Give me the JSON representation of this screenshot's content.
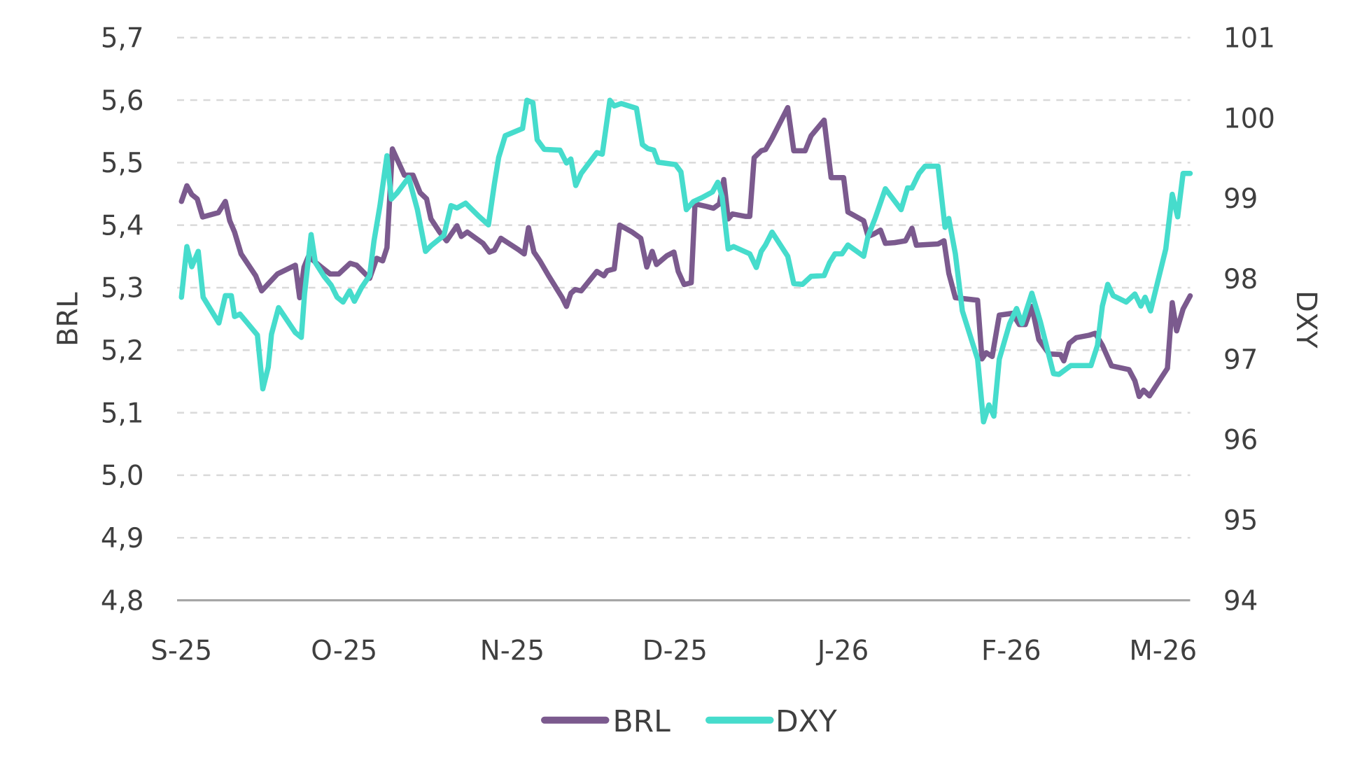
{
  "chart_data": {
    "type": "line",
    "title": "",
    "xlabel": "",
    "ylabel": "BRL",
    "y2label": "DXY",
    "ylim": [
      4.8,
      5.7
    ],
    "y2lim": [
      94,
      101
    ],
    "x_unit": "days since start of September 2025",
    "xlim": [
      0,
      186
    ],
    "grid": true,
    "legend_position": "bottom-center",
    "y_ticks": [
      {
        "value": 5.7,
        "label": "5,7"
      },
      {
        "value": 5.6,
        "label": "5,6"
      },
      {
        "value": 5.5,
        "label": "5,5"
      },
      {
        "value": 5.4,
        "label": "5,4"
      },
      {
        "value": 5.3,
        "label": "5,3"
      },
      {
        "value": 5.2,
        "label": "5,2"
      },
      {
        "value": 5.1,
        "label": "5,1"
      },
      {
        "value": 5.0,
        "label": "5,0"
      },
      {
        "value": 4.9,
        "label": "4,9"
      },
      {
        "value": 4.8,
        "label": "4,8"
      }
    ],
    "y2_ticks": [
      {
        "value": 101,
        "label": "101"
      },
      {
        "value": 100,
        "label": "100"
      },
      {
        "value": 99,
        "label": "99"
      },
      {
        "value": 98,
        "label": "98"
      },
      {
        "value": 97,
        "label": "97"
      },
      {
        "value": 96,
        "label": "96"
      },
      {
        "value": 95,
        "label": "95"
      },
      {
        "value": 94,
        "label": "94"
      }
    ],
    "x_ticks": [
      {
        "value": 0,
        "label": "S-25"
      },
      {
        "value": 30,
        "label": "O-25"
      },
      {
        "value": 61,
        "label": "N-25"
      },
      {
        "value": 91,
        "label": "D-25"
      },
      {
        "value": 122,
        "label": "J-26"
      },
      {
        "value": 153,
        "label": "F-26"
      },
      {
        "value": 181,
        "label": "M-26"
      }
    ],
    "series": [
      {
        "name": "BRL",
        "axis": "left",
        "color": "#7b5a8e",
        "points": [
          [
            0,
            5.438
          ],
          [
            1.0,
            5.463
          ],
          [
            1.9,
            5.449
          ],
          [
            2.9,
            5.442
          ],
          [
            3.9,
            5.413
          ],
          [
            6.8,
            5.42
          ],
          [
            8.1,
            5.438
          ],
          [
            8.9,
            5.407
          ],
          [
            9.8,
            5.389
          ],
          [
            11.0,
            5.354
          ],
          [
            13.7,
            5.319
          ],
          [
            14.8,
            5.295
          ],
          [
            17.7,
            5.322
          ],
          [
            21.0,
            5.336
          ],
          [
            21.8,
            5.284
          ],
          [
            22.6,
            5.333
          ],
          [
            23.4,
            5.35
          ],
          [
            25.8,
            5.333
          ],
          [
            27.4,
            5.322
          ],
          [
            29.0,
            5.322
          ],
          [
            31.1,
            5.339
          ],
          [
            32.3,
            5.336
          ],
          [
            34.7,
            5.315
          ],
          [
            36.0,
            5.347
          ],
          [
            37.1,
            5.343
          ],
          [
            37.9,
            5.364
          ],
          [
            38.9,
            5.522
          ],
          [
            41.1,
            5.48
          ],
          [
            42.7,
            5.48
          ],
          [
            44.0,
            5.452
          ],
          [
            45.2,
            5.442
          ],
          [
            46.0,
            5.41
          ],
          [
            47.6,
            5.389
          ],
          [
            48.9,
            5.375
          ],
          [
            50.8,
            5.399
          ],
          [
            51.6,
            5.382
          ],
          [
            52.7,
            5.389
          ],
          [
            55.6,
            5.371
          ],
          [
            56.8,
            5.357
          ],
          [
            57.7,
            5.36
          ],
          [
            58.9,
            5.379
          ],
          [
            62.1,
            5.361
          ],
          [
            63.2,
            5.354
          ],
          [
            64.0,
            5.396
          ],
          [
            65.0,
            5.357
          ],
          [
            66.1,
            5.343
          ],
          [
            67.7,
            5.319
          ],
          [
            70.2,
            5.284
          ],
          [
            71.0,
            5.27
          ],
          [
            71.8,
            5.291
          ],
          [
            72.6,
            5.297
          ],
          [
            73.7,
            5.295
          ],
          [
            76.6,
            5.326
          ],
          [
            77.9,
            5.319
          ],
          [
            78.5,
            5.327
          ],
          [
            79.8,
            5.33
          ],
          [
            80.8,
            5.4
          ],
          [
            83.1,
            5.389
          ],
          [
            84.7,
            5.379
          ],
          [
            85.8,
            5.333
          ],
          [
            86.8,
            5.358
          ],
          [
            87.6,
            5.337
          ],
          [
            89.5,
            5.351
          ],
          [
            90.8,
            5.357
          ],
          [
            91.6,
            5.326
          ],
          [
            92.7,
            5.305
          ],
          [
            94.0,
            5.308
          ],
          [
            94.7,
            5.434
          ],
          [
            96.8,
            5.43
          ],
          [
            98.1,
            5.427
          ],
          [
            99.2,
            5.434
          ],
          [
            100.0,
            5.473
          ],
          [
            100.8,
            5.41
          ],
          [
            101.6,
            5.418
          ],
          [
            104.0,
            5.414
          ],
          [
            104.8,
            5.414
          ],
          [
            105.6,
            5.508
          ],
          [
            106.9,
            5.519
          ],
          [
            107.7,
            5.521
          ],
          [
            108.9,
            5.539
          ],
          [
            111.8,
            5.588
          ],
          [
            112.9,
            5.519
          ],
          [
            115.0,
            5.519
          ],
          [
            116.1,
            5.543
          ],
          [
            118.5,
            5.568
          ],
          [
            119.8,
            5.476
          ],
          [
            122.1,
            5.476
          ],
          [
            122.9,
            5.421
          ],
          [
            125.8,
            5.407
          ],
          [
            126.6,
            5.382
          ],
          [
            127.7,
            5.386
          ],
          [
            128.9,
            5.392
          ],
          [
            129.8,
            5.371
          ],
          [
            131.5,
            5.372
          ],
          [
            133.5,
            5.375
          ],
          [
            134.7,
            5.395
          ],
          [
            135.5,
            5.368
          ],
          [
            139.5,
            5.37
          ],
          [
            140.6,
            5.375
          ],
          [
            141.5,
            5.323
          ],
          [
            142.7,
            5.284
          ],
          [
            146.8,
            5.28
          ],
          [
            147.6,
            5.186
          ],
          [
            148.4,
            5.196
          ],
          [
            149.5,
            5.19
          ],
          [
            150.8,
            5.256
          ],
          [
            153.2,
            5.259
          ],
          [
            154.5,
            5.241
          ],
          [
            155.6,
            5.241
          ],
          [
            156.8,
            5.27
          ],
          [
            158.1,
            5.217
          ],
          [
            160.0,
            5.194
          ],
          [
            162.1,
            5.193
          ],
          [
            162.7,
            5.183
          ],
          [
            163.7,
            5.211
          ],
          [
            165.0,
            5.22
          ],
          [
            167.4,
            5.224
          ],
          [
            168.5,
            5.227
          ],
          [
            169.8,
            5.208
          ],
          [
            171.5,
            5.175
          ],
          [
            174.7,
            5.169
          ],
          [
            175.8,
            5.151
          ],
          [
            176.6,
            5.126
          ],
          [
            177.4,
            5.136
          ],
          [
            178.5,
            5.127
          ],
          [
            181.8,
            5.171
          ],
          [
            182.7,
            5.276
          ],
          [
            183.5,
            5.231
          ],
          [
            184.7,
            5.266
          ],
          [
            186.0,
            5.287
          ]
        ]
      },
      {
        "name": "DXY",
        "axis": "right",
        "color": "#46dccc",
        "points": [
          [
            0,
            97.77
          ],
          [
            1.0,
            98.4
          ],
          [
            1.9,
            98.15
          ],
          [
            3.1,
            98.34
          ],
          [
            4.0,
            97.77
          ],
          [
            6.9,
            97.45
          ],
          [
            8.1,
            97.79
          ],
          [
            9.2,
            97.79
          ],
          [
            9.8,
            97.53
          ],
          [
            10.8,
            97.56
          ],
          [
            14.0,
            97.3
          ],
          [
            15.0,
            96.63
          ],
          [
            16.0,
            96.9
          ],
          [
            16.6,
            97.31
          ],
          [
            17.9,
            97.64
          ],
          [
            21.0,
            97.33
          ],
          [
            22.1,
            97.27
          ],
          [
            22.7,
            97.81
          ],
          [
            23.9,
            98.55
          ],
          [
            24.7,
            98.2
          ],
          [
            26.3,
            98.03
          ],
          [
            27.6,
            97.92
          ],
          [
            28.7,
            97.77
          ],
          [
            29.8,
            97.71
          ],
          [
            31.0,
            97.85
          ],
          [
            31.9,
            97.72
          ],
          [
            33.2,
            97.89
          ],
          [
            34.7,
            98.04
          ],
          [
            35.5,
            98.47
          ],
          [
            36.6,
            98.91
          ],
          [
            37.9,
            99.53
          ],
          [
            38.7,
            98.99
          ],
          [
            39.8,
            99.07
          ],
          [
            41.9,
            99.26
          ],
          [
            43.5,
            98.86
          ],
          [
            45.0,
            98.34
          ],
          [
            46.0,
            98.41
          ],
          [
            48.4,
            98.54
          ],
          [
            49.7,
            98.91
          ],
          [
            50.8,
            98.88
          ],
          [
            52.4,
            98.94
          ],
          [
            54.8,
            98.78
          ],
          [
            56.6,
            98.67
          ],
          [
            57.7,
            99.18
          ],
          [
            58.5,
            99.51
          ],
          [
            59.7,
            99.78
          ],
          [
            62.9,
            99.87
          ],
          [
            63.7,
            100.22
          ],
          [
            64.8,
            100.19
          ],
          [
            65.6,
            99.73
          ],
          [
            66.9,
            99.61
          ],
          [
            69.8,
            99.6
          ],
          [
            71.0,
            99.44
          ],
          [
            71.8,
            99.49
          ],
          [
            72.7,
            99.16
          ],
          [
            73.7,
            99.31
          ],
          [
            76.6,
            99.57
          ],
          [
            77.6,
            99.55
          ],
          [
            79.0,
            100.22
          ],
          [
            79.8,
            100.15
          ],
          [
            81.1,
            100.18
          ],
          [
            83.9,
            100.12
          ],
          [
            85.0,
            99.67
          ],
          [
            86.0,
            99.62
          ],
          [
            87.1,
            99.6
          ],
          [
            87.9,
            99.45
          ],
          [
            91.1,
            99.42
          ],
          [
            92.1,
            99.33
          ],
          [
            93.1,
            98.86
          ],
          [
            94.4,
            98.96
          ],
          [
            96.0,
            99.01
          ],
          [
            97.9,
            99.08
          ],
          [
            98.9,
            99.2
          ],
          [
            99.7,
            99.02
          ],
          [
            100.8,
            98.37
          ],
          [
            101.8,
            98.4
          ],
          [
            104.8,
            98.31
          ],
          [
            106.0,
            98.14
          ],
          [
            106.9,
            98.34
          ],
          [
            107.7,
            98.42
          ],
          [
            108.9,
            98.58
          ],
          [
            111.8,
            98.28
          ],
          [
            112.9,
            97.94
          ],
          [
            114.5,
            97.93
          ],
          [
            116.1,
            98.03
          ],
          [
            118.5,
            98.04
          ],
          [
            119.5,
            98.2
          ],
          [
            120.5,
            98.31
          ],
          [
            121.8,
            98.31
          ],
          [
            122.9,
            98.42
          ],
          [
            125.8,
            98.28
          ],
          [
            126.6,
            98.53
          ],
          [
            127.9,
            98.75
          ],
          [
            129.8,
            99.12
          ],
          [
            132.7,
            98.86
          ],
          [
            133.9,
            99.13
          ],
          [
            134.7,
            99.13
          ],
          [
            136.0,
            99.31
          ],
          [
            137.1,
            99.4
          ],
          [
            139.5,
            99.4
          ],
          [
            140.8,
            98.64
          ],
          [
            141.5,
            98.75
          ],
          [
            142.7,
            98.31
          ],
          [
            144.0,
            97.6
          ],
          [
            146.8,
            97.0
          ],
          [
            147.9,
            96.22
          ],
          [
            148.9,
            96.43
          ],
          [
            149.8,
            96.29
          ],
          [
            150.8,
            97.0
          ],
          [
            152.7,
            97.44
          ],
          [
            154.0,
            97.63
          ],
          [
            155.0,
            97.44
          ],
          [
            156.8,
            97.82
          ],
          [
            158.4,
            97.46
          ],
          [
            160.8,
            96.82
          ],
          [
            161.8,
            96.81
          ],
          [
            164.0,
            96.92
          ],
          [
            167.7,
            96.92
          ],
          [
            168.9,
            97.17
          ],
          [
            169.8,
            97.66
          ],
          [
            170.8,
            97.93
          ],
          [
            171.8,
            97.79
          ],
          [
            174.2,
            97.71
          ],
          [
            175.8,
            97.81
          ],
          [
            176.9,
            97.66
          ],
          [
            177.7,
            97.77
          ],
          [
            178.7,
            97.6
          ],
          [
            181.5,
            98.37
          ],
          [
            182.7,
            99.05
          ],
          [
            183.7,
            98.77
          ],
          [
            184.7,
            99.31
          ],
          [
            186.0,
            99.31
          ]
        ]
      }
    ]
  }
}
